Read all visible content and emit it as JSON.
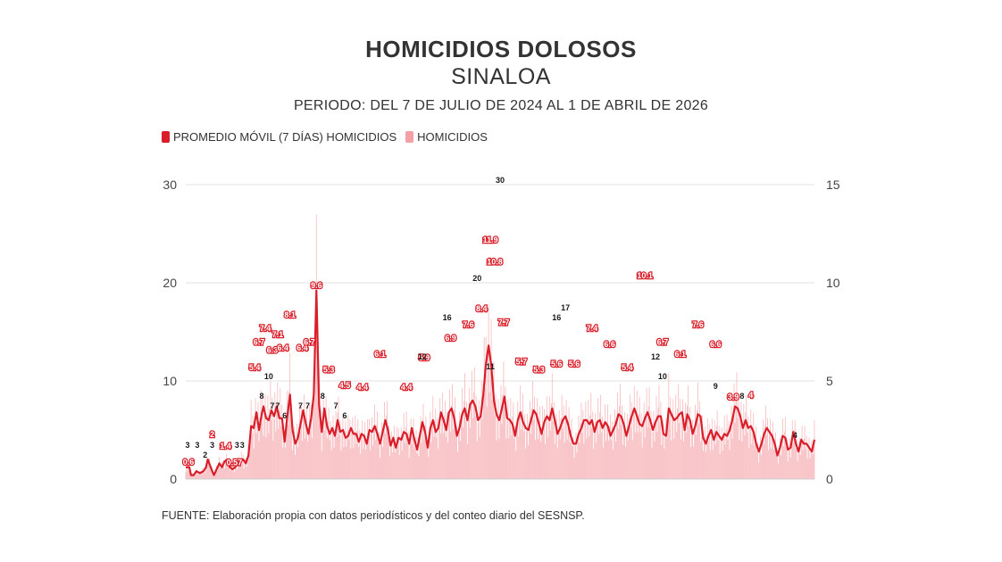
{
  "chart_data": {
    "type": "bar",
    "title": "HOMICIDIOS DOLOSOS",
    "subtitle": "SINALOA",
    "period": "PERIODO: DEL 7 DE JULIO DE 2024 AL 1 DE ABRIL DE 2026",
    "source": "FUENTE: Elaboración propia con datos periodísticos y del conteo diario del SESNSP.",
    "legend": [
      {
        "name": "PROMEDIO MÓVIL (7 DÍAS) HOMICIDIOS",
        "color": "#d91e2a"
      },
      {
        "name": "HOMICIDIOS",
        "color": "#f4a0a6"
      }
    ],
    "legend_placement": "top-left",
    "grid": true,
    "y_left": {
      "ticks": [
        0,
        10,
        20,
        30
      ],
      "ylim": [
        0,
        30
      ]
    },
    "y_right": {
      "ticks": [
        0,
        5,
        10,
        15
      ],
      "ylim": [
        0,
        15
      ]
    },
    "moving_average_points": [
      [
        0,
        0.6
      ],
      [
        4,
        0.6
      ],
      [
        6,
        0.2
      ],
      [
        9,
        0.2
      ],
      [
        12,
        0.4
      ],
      [
        16,
        0.3
      ],
      [
        20,
        0.4
      ],
      [
        23,
        0.6
      ],
      [
        25,
        1.0
      ],
      [
        29,
        0.5
      ],
      [
        32,
        0.2
      ],
      [
        35,
        0.5
      ],
      [
        38,
        0.8
      ],
      [
        41,
        0.6
      ],
      [
        44,
        0.9
      ],
      [
        47,
        1.0
      ],
      [
        50,
        0.6
      ],
      [
        53,
        0.5
      ],
      [
        56,
        0.6
      ],
      [
        59,
        0.8
      ],
      [
        62,
        0.9
      ],
      [
        65,
        1.0
      ],
      [
        68,
        0.8
      ],
      [
        71,
        1.2
      ],
      [
        74,
        2.7
      ],
      [
        77,
        2.6
      ],
      [
        80,
        3.4
      ],
      [
        83,
        2.5
      ],
      [
        86,
        3.3
      ],
      [
        88,
        3.7
      ],
      [
        91,
        3.1
      ],
      [
        94,
        3.0
      ],
      [
        97,
        3.5
      ],
      [
        100,
        3.2
      ],
      [
        103,
        3.7
      ],
      [
        106,
        3.1
      ],
      [
        109,
        3.1
      ],
      [
        112,
        1.9
      ],
      [
        115,
        3.2
      ],
      [
        118,
        4.3
      ],
      [
        121,
        2.5
      ],
      [
        124,
        1.8
      ],
      [
        127,
        2.1
      ],
      [
        130,
        2.8
      ],
      [
        133,
        3.5
      ],
      [
        136,
        2.8
      ],
      [
        139,
        2.3
      ],
      [
        142,
        3.1
      ],
      [
        145,
        4.3
      ],
      [
        148,
        9.6
      ],
      [
        151,
        3.8
      ],
      [
        154,
        2.4
      ],
      [
        157,
        3.6
      ],
      [
        160,
        2.7
      ],
      [
        163,
        2.3
      ],
      [
        166,
        2.6
      ],
      [
        169,
        2.2
      ],
      [
        172,
        3.0
      ],
      [
        175,
        2.4
      ],
      [
        178,
        2.5
      ],
      [
        181,
        2.1
      ],
      [
        184,
        2.2
      ],
      [
        187,
        2.6
      ],
      [
        190,
        2.3
      ],
      [
        193,
        2.3
      ],
      [
        196,
        1.9
      ],
      [
        199,
        2.3
      ],
      [
        202,
        2.2
      ],
      [
        205,
        1.8
      ],
      [
        208,
        2.5
      ],
      [
        211,
        2.4
      ],
      [
        214,
        2.7
      ],
      [
        217,
        2.3
      ],
      [
        220,
        1.8
      ],
      [
        223,
        2.4
      ],
      [
        226,
        3.0
      ],
      [
        229,
        2.5
      ],
      [
        232,
        1.7
      ],
      [
        235,
        2.1
      ],
      [
        238,
        1.6
      ],
      [
        241,
        2.1
      ],
      [
        244,
        2.0
      ],
      [
        247,
        2.4
      ],
      [
        250,
        2.3
      ],
      [
        253,
        1.8
      ],
      [
        256,
        2.6
      ],
      [
        259,
        2.0
      ],
      [
        262,
        1.5
      ],
      [
        265,
        2.2
      ],
      [
        268,
        2.9
      ],
      [
        271,
        2.4
      ],
      [
        274,
        1.6
      ],
      [
        277,
        2.6
      ],
      [
        280,
        3.0
      ],
      [
        283,
        2.4
      ],
      [
        286,
        2.6
      ],
      [
        289,
        3.4
      ],
      [
        292,
        3.0
      ],
      [
        295,
        2.5
      ],
      [
        298,
        3.4
      ],
      [
        301,
        3.6
      ],
      [
        304,
        3.1
      ],
      [
        307,
        2.2
      ],
      [
        310,
        2.6
      ],
      [
        313,
        3.3
      ],
      [
        316,
        3.6
      ],
      [
        319,
        3.0
      ],
      [
        322,
        3.8
      ],
      [
        325,
        4.0
      ],
      [
        328,
        3.7
      ],
      [
        331,
        3.0
      ],
      [
        334,
        3.2
      ],
      [
        337,
        4.3
      ],
      [
        340,
        5.9
      ],
      [
        343,
        6.8
      ],
      [
        346,
        5.8
      ],
      [
        349,
        4.0
      ],
      [
        352,
        3.3
      ],
      [
        355,
        3.0
      ],
      [
        358,
        3.6
      ],
      [
        361,
        4.2
      ],
      [
        364,
        3.1
      ],
      [
        367,
        3.0
      ],
      [
        370,
        2.8
      ],
      [
        373,
        2.2
      ],
      [
        376,
        3.0
      ],
      [
        379,
        3.4
      ],
      [
        382,
        2.9
      ],
      [
        385,
        2.6
      ],
      [
        388,
        2.5
      ],
      [
        391,
        3.0
      ],
      [
        394,
        3.5
      ],
      [
        397,
        3.3
      ],
      [
        400,
        2.8
      ],
      [
        403,
        2.3
      ],
      [
        406,
        2.9
      ],
      [
        409,
        3.2
      ],
      [
        412,
        3.0
      ],
      [
        415,
        3.6
      ],
      [
        418,
        3.0
      ],
      [
        421,
        2.3
      ],
      [
        424,
        2.6
      ],
      [
        427,
        3.0
      ],
      [
        430,
        3.2
      ],
      [
        433,
        2.8
      ],
      [
        436,
        2.2
      ],
      [
        439,
        1.8
      ],
      [
        442,
        1.8
      ],
      [
        445,
        2.3
      ],
      [
        448,
        2.6
      ],
      [
        451,
        3.0
      ],
      [
        454,
        3.0
      ],
      [
        457,
        2.8
      ],
      [
        460,
        3.0
      ],
      [
        463,
        2.4
      ],
      [
        466,
        2.9
      ],
      [
        469,
        3.0
      ],
      [
        472,
        2.6
      ],
      [
        475,
        2.9
      ],
      [
        478,
        2.7
      ],
      [
        481,
        2.2
      ],
      [
        484,
        2.5
      ],
      [
        487,
        2.8
      ],
      [
        490,
        3.3
      ],
      [
        493,
        3.2
      ],
      [
        496,
        2.8
      ],
      [
        499,
        2.2
      ],
      [
        502,
        2.7
      ],
      [
        505,
        3.2
      ],
      [
        508,
        3.6
      ],
      [
        511,
        3.2
      ],
      [
        514,
        2.8
      ],
      [
        517,
        2.7
      ],
      [
        520,
        3.1
      ],
      [
        523,
        3.4
      ],
      [
        526,
        3.0
      ],
      [
        529,
        2.5
      ],
      [
        532,
        2.9
      ],
      [
        535,
        3.2
      ],
      [
        538,
        3.2
      ],
      [
        541,
        2.3
      ],
      [
        544,
        2.2
      ],
      [
        547,
        3.6
      ],
      [
        550,
        3.3
      ],
      [
        553,
        3.0
      ],
      [
        556,
        3.1
      ],
      [
        559,
        3.3
      ],
      [
        562,
        3.4
      ],
      [
        565,
        2.5
      ],
      [
        568,
        3.3
      ],
      [
        571,
        3.0
      ],
      [
        574,
        2.3
      ],
      [
        577,
        2.7
      ],
      [
        580,
        3.3
      ],
      [
        583,
        3.2
      ],
      [
        586,
        2.1
      ],
      [
        589,
        1.8
      ],
      [
        592,
        2.2
      ],
      [
        595,
        2.5
      ],
      [
        598,
        2.0
      ],
      [
        601,
        2.4
      ],
      [
        604,
        2.2
      ],
      [
        607,
        2.0
      ],
      [
        610,
        2.3
      ],
      [
        613,
        2.2
      ],
      [
        616,
        2.5
      ],
      [
        619,
        3.0
      ],
      [
        622,
        3.7
      ],
      [
        625,
        3.6
      ],
      [
        628,
        3.2
      ],
      [
        631,
        2.6
      ],
      [
        634,
        3.0
      ],
      [
        637,
        2.6
      ],
      [
        640,
        2.7
      ],
      [
        643,
        2.4
      ],
      [
        646,
        1.8
      ],
      [
        649,
        1.4
      ],
      [
        652,
        1.8
      ],
      [
        655,
        2.3
      ],
      [
        658,
        2.6
      ],
      [
        661,
        2.4
      ],
      [
        664,
        2.2
      ],
      [
        667,
        1.8
      ],
      [
        670,
        1.2
      ],
      [
        673,
        1.6
      ],
      [
        676,
        2.2
      ],
      [
        679,
        2.1
      ],
      [
        682,
        1.5
      ],
      [
        685,
        1.6
      ],
      [
        688,
        2.4
      ],
      [
        691,
        1.8
      ],
      [
        694,
        1.4
      ],
      [
        697,
        2.0
      ],
      [
        700,
        1.8
      ],
      [
        703,
        1.8
      ],
      [
        706,
        1.6
      ],
      [
        709,
        1.4
      ],
      [
        712,
        2.0
      ]
    ],
    "moving_average_labels": [
      {
        "i": 3,
        "v": 0.6
      },
      {
        "i": 30,
        "v": 2.0
      },
      {
        "i": 45,
        "v": 1.4
      },
      {
        "i": 55,
        "v": 0.57
      },
      {
        "i": 78,
        "v": 5.4
      },
      {
        "i": 83,
        "v": 6.7
      },
      {
        "i": 90,
        "v": 7.4
      },
      {
        "i": 98,
        "v": 6.3
      },
      {
        "i": 104,
        "v": 7.1
      },
      {
        "i": 110,
        "v": 6.4
      },
      {
        "i": 118,
        "v": 8.1
      },
      {
        "i": 132,
        "v": 6.4
      },
      {
        "i": 140,
        "v": 6.7
      },
      {
        "i": 148,
        "v": 9.6
      },
      {
        "i": 162,
        "v": 5.3
      },
      {
        "i": 180,
        "v": 4.5
      },
      {
        "i": 200,
        "v": 4.4
      },
      {
        "i": 220,
        "v": 6.1
      },
      {
        "i": 250,
        "v": 4.4
      },
      {
        "i": 270,
        "v": 5.9
      },
      {
        "i": 300,
        "v": 6.9
      },
      {
        "i": 320,
        "v": 7.6
      },
      {
        "i": 335,
        "v": 8.4
      },
      {
        "i": 345,
        "v": 11.9
      },
      {
        "i": 350,
        "v": 10.8
      },
      {
        "i": 360,
        "v": 7.7
      },
      {
        "i": 380,
        "v": 5.7
      },
      {
        "i": 400,
        "v": 5.3
      },
      {
        "i": 420,
        "v": 5.6
      },
      {
        "i": 440,
        "v": 5.6
      },
      {
        "i": 460,
        "v": 7.4
      },
      {
        "i": 480,
        "v": 6.6
      },
      {
        "i": 500,
        "v": 5.4
      },
      {
        "i": 520,
        "v": 10.1
      },
      {
        "i": 540,
        "v": 6.7
      },
      {
        "i": 560,
        "v": 6.1
      },
      {
        "i": 580,
        "v": 7.6
      },
      {
        "i": 600,
        "v": 6.6
      },
      {
        "i": 620,
        "v": 3.9
      },
      {
        "i": 640,
        "v": 4.0
      }
    ],
    "homicidios_labels": [
      {
        "i": 2,
        "v": 3
      },
      {
        "i": 13,
        "v": 3
      },
      {
        "i": 22,
        "v": 2
      },
      {
        "i": 30,
        "v": 3
      },
      {
        "i": 58,
        "v": 3
      },
      {
        "i": 64,
        "v": 3
      },
      {
        "i": 86,
        "v": 8
      },
      {
        "i": 94,
        "v": 10
      },
      {
        "i": 98,
        "v": 7
      },
      {
        "i": 104,
        "v": 7
      },
      {
        "i": 112,
        "v": 6
      },
      {
        "i": 130,
        "v": 7
      },
      {
        "i": 138,
        "v": 7
      },
      {
        "i": 155,
        "v": 8
      },
      {
        "i": 170,
        "v": 7
      },
      {
        "i": 180,
        "v": 6
      },
      {
        "i": 268,
        "v": 12
      },
      {
        "i": 296,
        "v": 16
      },
      {
        "i": 330,
        "v": 20
      },
      {
        "i": 345,
        "v": 11
      },
      {
        "i": 356,
        "v": 30
      },
      {
        "i": 420,
        "v": 16
      },
      {
        "i": 430,
        "v": 17
      },
      {
        "i": 532,
        "v": 12
      },
      {
        "i": 540,
        "v": 10
      },
      {
        "i": 600,
        "v": 9
      },
      {
        "i": 630,
        "v": 8
      },
      {
        "i": 690,
        "v": 4
      }
    ]
  }
}
